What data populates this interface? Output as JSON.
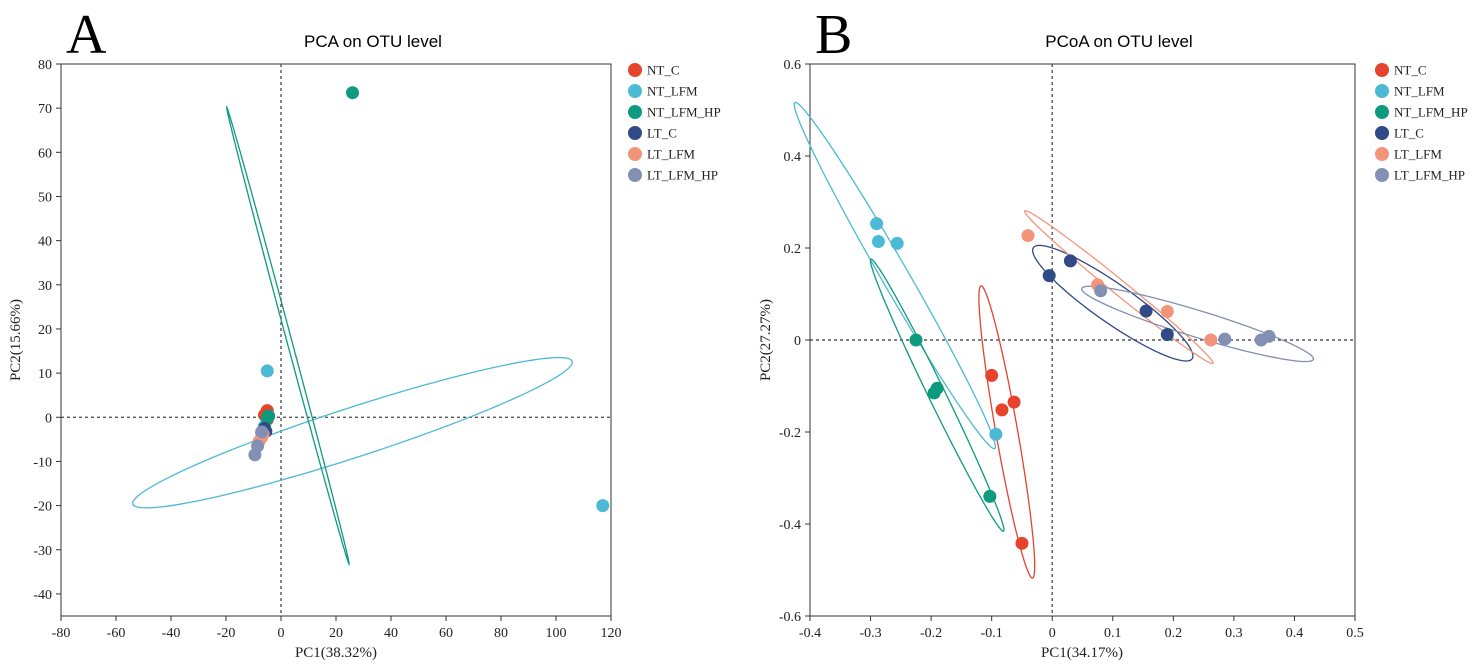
{
  "figure": {
    "panels": [
      "A",
      "B"
    ]
  },
  "groups": [
    {
      "name": "NT_C",
      "color": "#e5432c"
    },
    {
      "name": "NT_LFM",
      "color": "#4cbad4"
    },
    {
      "name": "NT_LFM_HP",
      "color": "#0e9a7e"
    },
    {
      "name": "LT_C",
      "color": "#2f4a86"
    },
    {
      "name": "LT_LFM",
      "color": "#f29479"
    },
    {
      "name": "LT_LFM_HP",
      "color": "#8390b3"
    }
  ],
  "chart_data": [
    {
      "panel": "A",
      "type": "scatter",
      "title": "PCA on OTU level",
      "xlabel": "PC1(38.32%)",
      "ylabel": "PC2(15.66%)",
      "xlim": [
        -80,
        120
      ],
      "ylim": [
        -45,
        80
      ],
      "xticks": [
        -80,
        -60,
        -40,
        -20,
        0,
        20,
        40,
        60,
        80,
        100,
        120
      ],
      "yticks": [
        -40,
        -30,
        -20,
        -10,
        0,
        10,
        20,
        30,
        40,
        50,
        60,
        70,
        80
      ],
      "reference_lines": {
        "x": 0,
        "y": 0
      },
      "legend_position": "right",
      "series": [
        {
          "name": "NT_C",
          "points": [
            [
              -5,
              1.5
            ],
            [
              -6,
              0.5
            ],
            [
              -5,
              -0.5
            ]
          ]
        },
        {
          "name": "NT_LFM",
          "points": [
            [
              -5,
              10.5
            ],
            [
              117,
              -20
            ],
            [
              -6,
              -2
            ]
          ]
        },
        {
          "name": "NT_LFM_HP",
          "points": [
            [
              26,
              73.5
            ],
            [
              -5,
              -0.2
            ],
            [
              -4.5,
              0.3
            ]
          ]
        },
        {
          "name": "LT_C",
          "points": [
            [
              -6,
              -2.5
            ],
            [
              -5.5,
              -3.2
            ],
            [
              -7,
              -3.5
            ]
          ]
        },
        {
          "name": "LT_LFM",
          "points": [
            [
              -7,
              -4.5
            ],
            [
              -8,
              -5.5
            ],
            [
              -6.5,
              -3.8
            ]
          ]
        },
        {
          "name": "LT_LFM_HP",
          "points": [
            [
              -7,
              -3.3
            ],
            [
              -8.5,
              -6.5
            ],
            [
              -9.5,
              -8.5
            ]
          ]
        }
      ],
      "ellipses": [
        {
          "group": "NT_LFM",
          "cx": 26,
          "cy": -3.5,
          "rx": 84,
          "ry": 9,
          "angle_deg": 18
        },
        {
          "group": "NT_LFM_HP",
          "cx": 2.5,
          "cy": 18.5,
          "rx": 86,
          "ry": 0.9,
          "angle_deg": -75
        }
      ]
    },
    {
      "panel": "B",
      "type": "scatter",
      "title": "PCoA on OTU level",
      "xlabel": "PC1(34.17%)",
      "ylabel": "PC2(27.27%)",
      "xlim": [
        -0.4,
        0.5
      ],
      "ylim": [
        -0.6,
        0.6
      ],
      "xticks": [
        -0.4,
        -0.3,
        -0.2,
        -0.1,
        0,
        0.1,
        0.2,
        0.3,
        0.4,
        0.5
      ],
      "yticks": [
        -0.6,
        -0.4,
        -0.2,
        0,
        0.2,
        0.4,
        0.6
      ],
      "xtick_labels": [
        "-0.4",
        "-0.3",
        "-0.2",
        "-0.1",
        "0",
        "0.1",
        "0.2",
        "0.3",
        "0.4",
        "0.5"
      ],
      "ytick_labels": [
        "-0.6",
        "-0.4",
        "-0.2",
        "0",
        "0.2",
        "0.4",
        "0.6"
      ],
      "reference_lines": {
        "x": 0,
        "y": 0
      },
      "legend_position": "right",
      "series": [
        {
          "name": "NT_C",
          "points": [
            [
              -0.1,
              -0.077
            ],
            [
              -0.083,
              -0.152
            ],
            [
              -0.063,
              -0.135
            ],
            [
              -0.05,
              -0.442
            ]
          ]
        },
        {
          "name": "NT_LFM",
          "points": [
            [
              -0.29,
              0.253
            ],
            [
              -0.287,
              0.214
            ],
            [
              -0.256,
              0.21
            ],
            [
              -0.093,
              -0.205
            ]
          ]
        },
        {
          "name": "NT_LFM_HP",
          "points": [
            [
              -0.225,
              0.0
            ],
            [
              -0.19,
              -0.105
            ],
            [
              -0.195,
              -0.115
            ],
            [
              -0.103,
              -0.34
            ]
          ]
        },
        {
          "name": "LT_C",
          "points": [
            [
              -0.005,
              0.14
            ],
            [
              0.03,
              0.172
            ],
            [
              0.155,
              0.063
            ],
            [
              0.19,
              0.012
            ]
          ]
        },
        {
          "name": "LT_LFM",
          "points": [
            [
              -0.04,
              0.227
            ],
            [
              0.075,
              0.12
            ],
            [
              0.19,
              0.062
            ],
            [
              0.262,
              0.0
            ]
          ]
        },
        {
          "name": "LT_LFM_HP",
          "points": [
            [
              0.08,
              0.107
            ],
            [
              0.285,
              0.002
            ],
            [
              0.345,
              0.0
            ],
            [
              0.358,
              0.008
            ]
          ]
        }
      ],
      "ellipses": [
        {
          "group": "NT_C",
          "cx": -0.075,
          "cy": -0.2,
          "rx": 0.245,
          "ry": 0.018,
          "angle_deg": -80
        },
        {
          "group": "NT_LFM",
          "cx": -0.26,
          "cy": 0.14,
          "rx": 0.33,
          "ry": 0.022,
          "angle_deg": -60
        },
        {
          "group": "NT_LFM_HP",
          "cx": -0.19,
          "cy": -0.12,
          "rx": 0.25,
          "ry": 0.014,
          "angle_deg": -64
        },
        {
          "group": "LT_C",
          "cx": 0.1,
          "cy": 0.08,
          "rx": 0.16,
          "ry": 0.032,
          "angle_deg": -35
        },
        {
          "group": "LT_LFM",
          "cx": 0.11,
          "cy": 0.115,
          "rx": 0.2,
          "ry": 0.012,
          "angle_deg": -39
        },
        {
          "group": "LT_LFM_HP",
          "cx": 0.24,
          "cy": 0.035,
          "rx": 0.2,
          "ry": 0.022,
          "angle_deg": -17
        }
      ]
    }
  ]
}
